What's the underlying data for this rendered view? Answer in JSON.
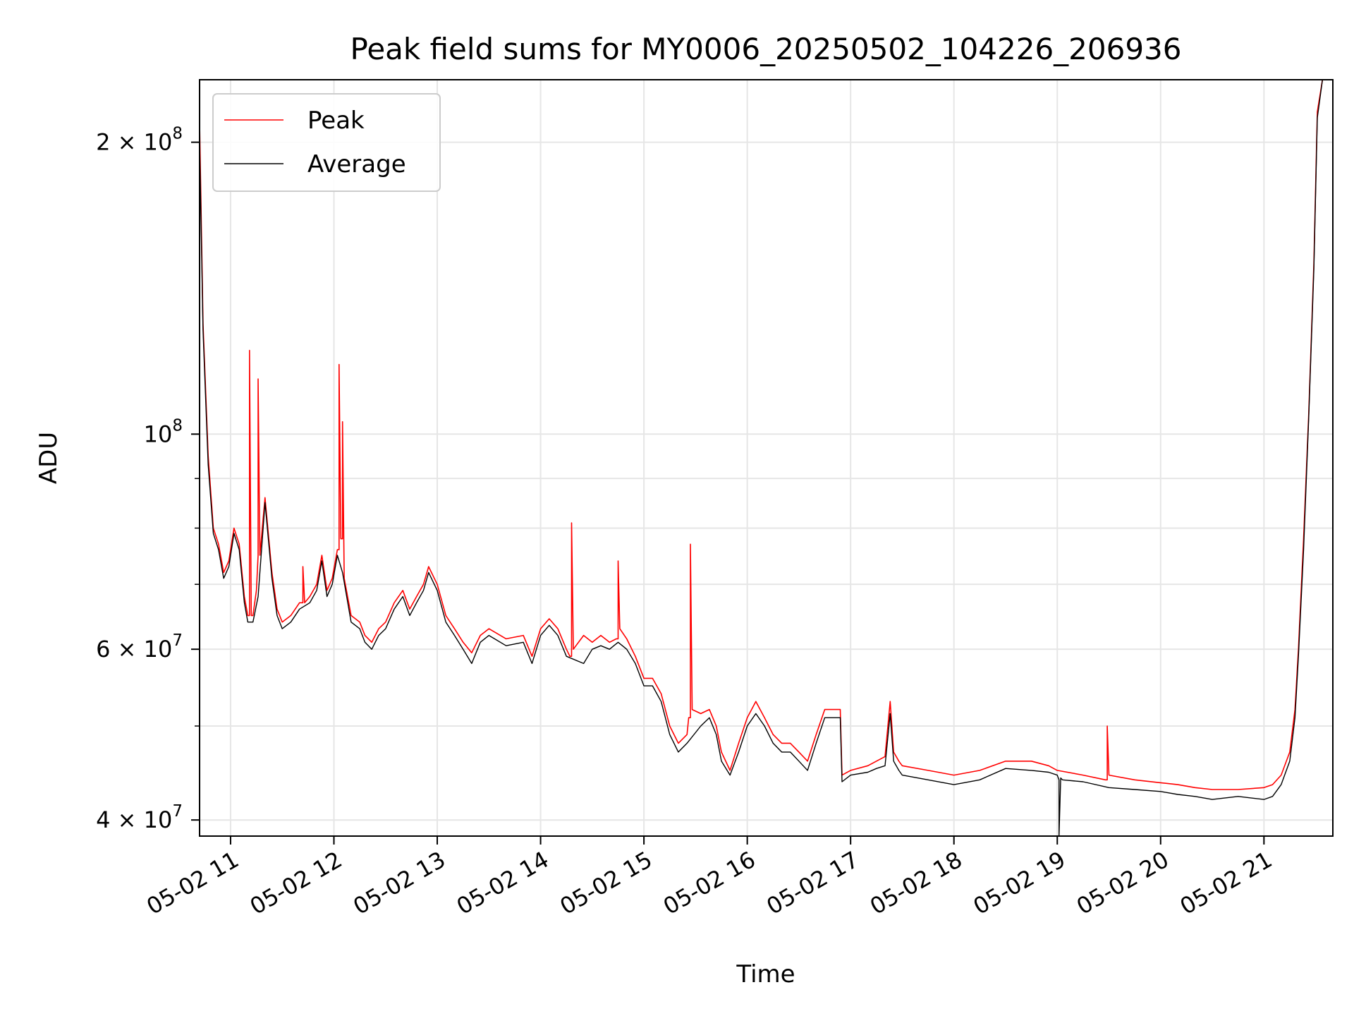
{
  "chart_data": {
    "type": "line",
    "title": "Peak field sums for MY0006_20250502_104226_206936",
    "xlabel": "Time",
    "ylabel": "ADU",
    "x_scale": "time",
    "y_scale": "log",
    "xlim": [
      "05-02 10:42",
      "05-02 21:40"
    ],
    "ylim": [
      38500000,
      232000000
    ],
    "x_ticks": [
      {
        "t": "05-02 11:00",
        "label": "05-02 11"
      },
      {
        "t": "05-02 12:00",
        "label": "05-02 12"
      },
      {
        "t": "05-02 13:00",
        "label": "05-02 13"
      },
      {
        "t": "05-02 14:00",
        "label": "05-02 14"
      },
      {
        "t": "05-02 15:00",
        "label": "05-02 15"
      },
      {
        "t": "05-02 16:00",
        "label": "05-02 16"
      },
      {
        "t": "05-02 17:00",
        "label": "05-02 17"
      },
      {
        "t": "05-02 18:00",
        "label": "05-02 18"
      },
      {
        "t": "05-02 19:00",
        "label": "05-02 19"
      },
      {
        "t": "05-02 20:00",
        "label": "05-02 20"
      },
      {
        "t": "05-02 21:00",
        "label": "05-02 21"
      }
    ],
    "y_ticks": [
      {
        "v": 40000000,
        "mantissa": "4",
        "exp": "7"
      },
      {
        "v": 60000000,
        "mantissa": "6",
        "exp": "7"
      },
      {
        "v": 100000000,
        "mantissa": "",
        "exp": "8"
      },
      {
        "v": 200000000,
        "mantissa": "2",
        "exp": "8"
      }
    ],
    "y_minor_ticks": [
      50000000,
      70000000,
      80000000,
      90000000
    ],
    "grid": true,
    "legend": "upper-left",
    "series": [
      {
        "name": "Peak",
        "color": "#ff0000",
        "x": [
          "05-02 10:42",
          "05-02 10:44",
          "05-02 10:47",
          "05-02 10:50",
          "05-02 10:53",
          "05-02 10:56",
          "05-02 10:59",
          "05-02 11:02",
          "05-02 11:05",
          "05-02 11:08",
          "05-02 11:10",
          "05-02 11:11",
          "05-02 11:11",
          "05-02 11:12",
          "05-02 11:13",
          "05-02 11:15",
          "05-02 11:16",
          "05-02 11:16",
          "05-02 11:17",
          "05-02 11:20",
          "05-02 11:24",
          "05-02 11:27",
          "05-02 11:30",
          "05-02 11:35",
          "05-02 11:40",
          "05-02 11:42",
          "05-02 11:42",
          "05-02 11:43",
          "05-02 11:46",
          "05-02 11:50",
          "05-02 11:53",
          "05-02 11:56",
          "05-02 11:59",
          "05-02 12:02",
          "05-02 12:03",
          "05-02 12:03",
          "05-02 12:04",
          "05-02 12:05",
          "05-02 12:05",
          "05-02 12:06",
          "05-02 12:10",
          "05-02 12:15",
          "05-02 12:18",
          "05-02 12:22",
          "05-02 12:26",
          "05-02 12:30",
          "05-02 12:35",
          "05-02 12:40",
          "05-02 12:44",
          "05-02 12:48",
          "05-02 12:52",
          "05-02 12:55",
          "05-02 13:00",
          "05-02 13:05",
          "05-02 13:10",
          "05-02 13:15",
          "05-02 13:20",
          "05-02 13:25",
          "05-02 13:30",
          "05-02 13:40",
          "05-02 13:50",
          "05-02 13:55",
          "05-02 14:00",
          "05-02 14:05",
          "05-02 14:10",
          "05-02 14:15",
          "05-02 14:17",
          "05-02 14:18",
          "05-02 14:18",
          "05-02 14:19",
          "05-02 14:25",
          "05-02 14:30",
          "05-02 14:35",
          "05-02 14:40",
          "05-02 14:44",
          "05-02 14:45",
          "05-02 14:45",
          "05-02 14:46",
          "05-02 14:50",
          "05-02 14:55",
          "05-02 15:00",
          "05-02 15:05",
          "05-02 15:10",
          "05-02 15:15",
          "05-02 15:20",
          "05-02 15:25",
          "05-02 15:26",
          "05-02 15:27",
          "05-02 15:27",
          "05-02 15:28",
          "05-02 15:33",
          "05-02 15:38",
          "05-02 15:42",
          "05-02 15:45",
          "05-02 15:50",
          "05-02 15:55",
          "05-02 16:00",
          "05-02 16:05",
          "05-02 16:10",
          "05-02 16:15",
          "05-02 16:20",
          "05-02 16:25",
          "05-02 16:30",
          "05-02 16:35",
          "05-02 16:40",
          "05-02 16:45",
          "05-02 16:50",
          "05-02 16:54",
          "05-02 16:55",
          "05-02 17:00",
          "05-02 17:10",
          "05-02 17:15",
          "05-02 17:20",
          "05-02 17:23",
          "05-02 17:25",
          "05-02 17:28",
          "05-02 17:30",
          "05-02 17:45",
          "05-02 18:00",
          "05-02 18:15",
          "05-02 18:30",
          "05-02 18:45",
          "05-02 18:55",
          "05-02 19:00",
          "05-02 19:15",
          "05-02 19:28",
          "05-02 19:29",
          "05-02 19:29",
          "05-02 19:30",
          "05-02 19:45",
          "05-02 20:00",
          "05-02 20:10",
          "05-02 20:20",
          "05-02 20:30",
          "05-02 20:45",
          "05-02 21:00",
          "05-02 21:05",
          "05-02 21:10",
          "05-02 21:15",
          "05-02 21:18",
          "05-02 21:20",
          "05-02 21:23",
          "05-02 21:26",
          "05-02 21:29",
          "05-02 21:31",
          "05-02 21:34"
        ],
        "y": [
          210000000,
          130000000,
          95000000,
          80000000,
          77000000,
          72000000,
          74000000,
          80000000,
          77000000,
          68000000,
          65000000,
          65000000,
          122000000,
          65000000,
          65000000,
          69000000,
          75000000,
          114000000,
          75000000,
          86000000,
          72000000,
          66000000,
          64000000,
          65000000,
          67000000,
          67000000,
          73000000,
          67000000,
          68000000,
          70000000,
          75000000,
          69000000,
          71000000,
          76000000,
          76000000,
          118000000,
          78000000,
          78000000,
          103000000,
          71000000,
          65000000,
          64000000,
          62000000,
          61000000,
          63000000,
          64000000,
          67000000,
          69000000,
          66000000,
          68000000,
          70000000,
          73000000,
          70000000,
          65000000,
          63000000,
          61000000,
          59500000,
          62000000,
          63000000,
          61500000,
          62000000,
          59000000,
          63000000,
          64500000,
          63000000,
          60000000,
          59000000,
          59000000,
          81000000,
          60000000,
          62000000,
          61000000,
          62000000,
          61000000,
          61500000,
          61500000,
          74000000,
          63000000,
          61500000,
          59000000,
          56000000,
          56000000,
          54000000,
          50000000,
          48000000,
          49000000,
          51000000,
          51000000,
          77000000,
          52000000,
          51500000,
          52000000,
          50000000,
          47000000,
          45000000,
          48000000,
          51000000,
          53000000,
          51000000,
          49000000,
          48000000,
          48000000,
          47000000,
          46000000,
          49000000,
          52000000,
          52000000,
          52000000,
          44500000,
          45000000,
          45500000,
          46000000,
          46500000,
          53000000,
          47000000,
          46000000,
          45500000,
          45000000,
          44500000,
          45000000,
          46000000,
          46000000,
          45500000,
          45000000,
          44500000,
          44000000,
          44000000,
          50000000,
          44500000,
          44000000,
          43700000,
          43500000,
          43200000,
          43000000,
          43000000,
          43200000,
          43500000,
          44500000,
          47000000,
          52000000,
          60000000,
          78000000,
          105000000,
          150000000,
          215000000,
          232000000
        ]
      },
      {
        "name": "Average",
        "color": "#000000",
        "x": [
          "05-02 10:42",
          "05-02 10:44",
          "05-02 10:47",
          "05-02 10:50",
          "05-02 10:53",
          "05-02 10:56",
          "05-02 10:59",
          "05-02 11:02",
          "05-02 11:05",
          "05-02 11:08",
          "05-02 11:10",
          "05-02 11:13",
          "05-02 11:16",
          "05-02 11:20",
          "05-02 11:24",
          "05-02 11:27",
          "05-02 11:30",
          "05-02 11:35",
          "05-02 11:40",
          "05-02 11:46",
          "05-02 11:50",
          "05-02 11:53",
          "05-02 11:56",
          "05-02 11:59",
          "05-02 12:02",
          "05-02 12:05",
          "05-02 12:10",
          "05-02 12:15",
          "05-02 12:18",
          "05-02 12:22",
          "05-02 12:26",
          "05-02 12:30",
          "05-02 12:35",
          "05-02 12:40",
          "05-02 12:44",
          "05-02 12:48",
          "05-02 12:52",
          "05-02 12:55",
          "05-02 13:00",
          "05-02 13:05",
          "05-02 13:10",
          "05-02 13:15",
          "05-02 13:20",
          "05-02 13:25",
          "05-02 13:30",
          "05-02 13:40",
          "05-02 13:50",
          "05-02 13:55",
          "05-02 14:00",
          "05-02 14:05",
          "05-02 14:10",
          "05-02 14:15",
          "05-02 14:25",
          "05-02 14:30",
          "05-02 14:35",
          "05-02 14:40",
          "05-02 14:45",
          "05-02 14:50",
          "05-02 14:55",
          "05-02 15:00",
          "05-02 15:05",
          "05-02 15:10",
          "05-02 15:15",
          "05-02 15:20",
          "05-02 15:25",
          "05-02 15:33",
          "05-02 15:38",
          "05-02 15:42",
          "05-02 15:45",
          "05-02 15:50",
          "05-02 15:55",
          "05-02 16:00",
          "05-02 16:05",
          "05-02 16:10",
          "05-02 16:15",
          "05-02 16:20",
          "05-02 16:25",
          "05-02 16:30",
          "05-02 16:35",
          "05-02 16:40",
          "05-02 16:45",
          "05-02 16:50",
          "05-02 16:54",
          "05-02 16:55",
          "05-02 17:00",
          "05-02 17:10",
          "05-02 17:15",
          "05-02 17:20",
          "05-02 17:23",
          "05-02 17:25",
          "05-02 17:28",
          "05-02 17:30",
          "05-02 17:45",
          "05-02 18:00",
          "05-02 18:15",
          "05-02 18:30",
          "05-02 18:45",
          "05-02 18:55",
          "05-02 19:00",
          "05-02 19:01",
          "05-02 19:01",
          "05-02 19:02",
          "05-02 19:03",
          "05-02 19:15",
          "05-02 19:30",
          "05-02 19:45",
          "05-02 20:00",
          "05-02 20:10",
          "05-02 20:20",
          "05-02 20:30",
          "05-02 20:45",
          "05-02 21:00",
          "05-02 21:05",
          "05-02 21:10",
          "05-02 21:15",
          "05-02 21:18",
          "05-02 21:20",
          "05-02 21:23",
          "05-02 21:26",
          "05-02 21:29",
          "05-02 21:31",
          "05-02 21:34"
        ],
        "y": [
          200000000,
          128000000,
          93000000,
          79000000,
          76000000,
          71000000,
          73000000,
          79000000,
          76000000,
          67000000,
          64000000,
          64000000,
          68000000,
          85000000,
          71000000,
          65000000,
          63000000,
          64000000,
          66000000,
          67000000,
          69000000,
          74000000,
          68000000,
          70000000,
          75000000,
          72000000,
          64000000,
          63000000,
          61000000,
          60000000,
          62000000,
          63000000,
          66000000,
          68000000,
          65000000,
          67000000,
          69000000,
          72000000,
          69000000,
          64000000,
          62000000,
          60000000,
          58000000,
          61000000,
          62000000,
          60500000,
          61000000,
          58000000,
          62000000,
          63500000,
          62000000,
          59000000,
          58000000,
          60000000,
          60500000,
          60000000,
          61000000,
          60000000,
          58000000,
          55000000,
          55000000,
          53000000,
          49000000,
          47000000,
          48000000,
          50000000,
          51000000,
          49000000,
          46000000,
          44500000,
          47000000,
          50000000,
          51500000,
          50000000,
          48000000,
          47000000,
          47000000,
          46000000,
          45000000,
          48000000,
          51000000,
          51000000,
          51000000,
          43800000,
          44500000,
          44800000,
          45200000,
          45500000,
          51500000,
          46000000,
          45000000,
          44500000,
          44000000,
          43500000,
          44000000,
          45200000,
          45000000,
          44800000,
          44500000,
          44000000,
          38500000,
          44200000,
          44000000,
          43800000,
          43200000,
          43000000,
          42800000,
          42500000,
          42300000,
          42000000,
          42300000,
          42000000,
          42300000,
          43500000,
          46000000,
          51000000,
          59000000,
          76000000,
          104000000,
          148000000,
          212000000,
          232000000
        ]
      }
    ]
  }
}
